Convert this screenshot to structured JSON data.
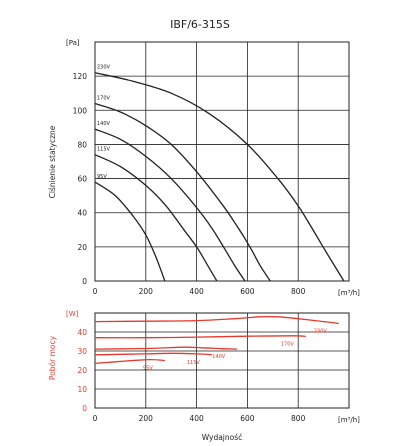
{
  "title": "IBF/6-315S",
  "xlabel": "Wydajność",
  "x_unit": "[m³/h]",
  "colors": {
    "pressure": "#222222",
    "power": "#e53a2b",
    "grid": "#222222"
  },
  "chart_data": [
    {
      "type": "line",
      "title": "IBF/6-315S",
      "ylabel": "Ciśnienie statyczne",
      "y_unit": "[Pa]",
      "xlim": [
        0,
        1000
      ],
      "ylim": [
        0,
        140
      ],
      "x_ticks": [
        "0",
        "200",
        "400",
        "600",
        "800"
      ],
      "y_ticks": [
        "0",
        "20",
        "40",
        "60",
        "80",
        "100",
        "120"
      ],
      "grid": true,
      "series": [
        {
          "name": "230V",
          "x": [
            0,
            150,
            300,
            450,
            600,
            720,
            800,
            850,
            910,
            980
          ],
          "y": [
            122,
            117,
            110,
            98,
            80,
            60,
            44,
            32,
            17,
            0
          ]
        },
        {
          "name": "170V",
          "x": [
            0,
            100,
            200,
            300,
            400,
            500,
            560,
            610,
            650,
            690
          ],
          "y": [
            104,
            99,
            91,
            80,
            64,
            45,
            32,
            20,
            9,
            0
          ]
        },
        {
          "name": "140V",
          "x": [
            0,
            100,
            200,
            300,
            400,
            460,
            510,
            550,
            590
          ],
          "y": [
            89,
            83,
            73,
            60,
            43,
            31,
            19,
            9,
            0
          ]
        },
        {
          "name": "115V",
          "x": [
            0,
            100,
            200,
            280,
            350,
            400,
            440,
            480
          ],
          "y": [
            74,
            67,
            56,
            44,
            30,
            20,
            10,
            0
          ]
        },
        {
          "name": "95V",
          "x": [
            0,
            80,
            150,
            200,
            240,
            275
          ],
          "y": [
            58,
            50,
            38,
            27,
            14,
            0
          ]
        }
      ]
    },
    {
      "type": "line",
      "ylabel": "Pobór mocy",
      "y_unit": "[W]",
      "xlim": [
        0,
        1000
      ],
      "ylim": [
        0,
        50
      ],
      "x_ticks": [
        "0",
        "200",
        "400",
        "600",
        "800"
      ],
      "y_ticks": [
        "0",
        "10",
        "20",
        "30",
        "40"
      ],
      "grid": true,
      "series": [
        {
          "name": "230V",
          "x": [
            0,
            200,
            400,
            550,
            650,
            720,
            800,
            900,
            960
          ],
          "y": [
            45.5,
            45.7,
            46,
            47,
            48,
            48,
            47,
            45.5,
            44.5
          ]
        },
        {
          "name": "170V",
          "x": [
            0,
            200,
            400,
            600,
            780,
            830
          ],
          "y": [
            37,
            37,
            37.3,
            37.8,
            38,
            37.7
          ]
        },
        {
          "name": "140V",
          "x": [
            0,
            200,
            350,
            420,
            500,
            560
          ],
          "y": [
            31,
            31.3,
            32,
            31.7,
            31.2,
            31
          ]
        },
        {
          "name": "115V",
          "x": [
            0,
            200,
            300,
            400,
            460
          ],
          "y": [
            28,
            28.5,
            28.8,
            28.5,
            28
          ]
        },
        {
          "name": "95V",
          "x": [
            0,
            150,
            220,
            275
          ],
          "y": [
            23.5,
            25,
            25.5,
            25
          ]
        }
      ]
    }
  ]
}
